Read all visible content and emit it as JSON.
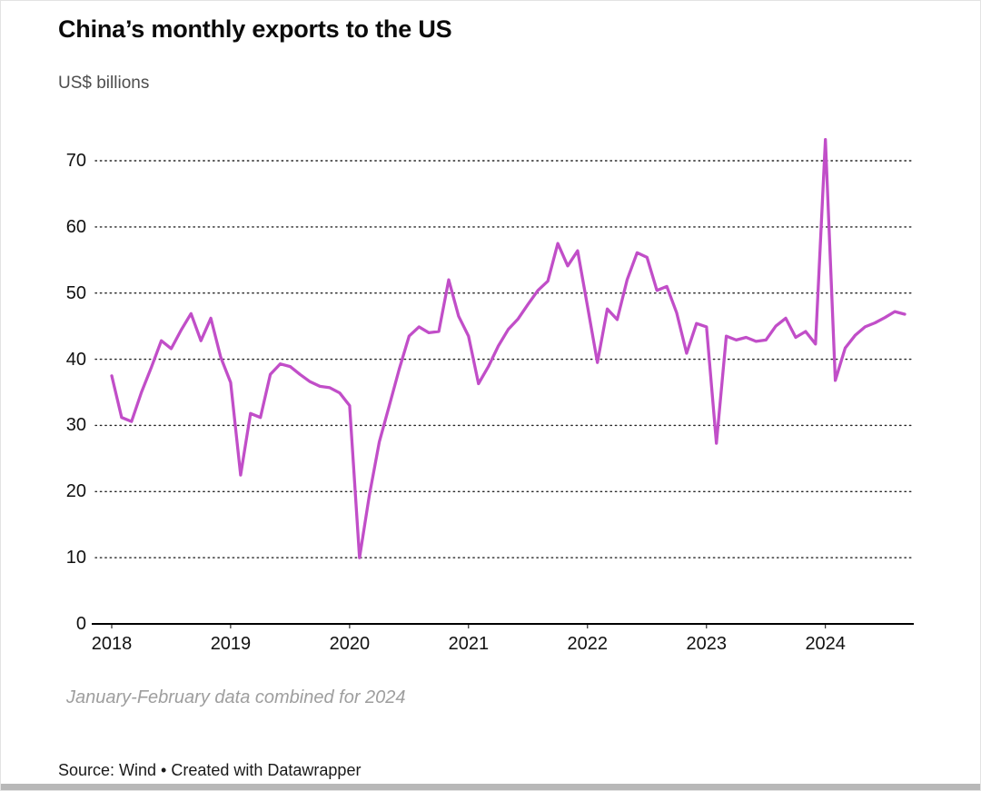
{
  "header": {
    "title": "China’s monthly exports to the US",
    "subtitle": "US$ billions"
  },
  "footnote": "January-February data combined for 2024",
  "source": "Source: Wind • Created with Datawrapper",
  "chart_data": {
    "type": "line",
    "title": "China’s monthly exports to the US",
    "xlabel": "",
    "ylabel": "US$ billions",
    "ylim": [
      0,
      75
    ],
    "yticks": [
      0,
      10,
      20,
      30,
      40,
      50,
      60,
      70
    ],
    "grid": "dotted horizontal",
    "legend_position": "none",
    "line_color": "#c14ec8",
    "note": "January-February data combined for 2024",
    "xticks": [
      {
        "label": "2018",
        "index": 0
      },
      {
        "label": "2019",
        "index": 12
      },
      {
        "label": "2020",
        "index": 24
      },
      {
        "label": "2021",
        "index": 36
      },
      {
        "label": "2022",
        "index": 48
      },
      {
        "label": "2023",
        "index": 60
      },
      {
        "label": "2024",
        "index": 72
      }
    ],
    "series_name": "China's monthly exports to the US (US$ billions)",
    "x": [
      "Jan 2018",
      "Feb 2018",
      "Mar 2018",
      "Apr 2018",
      "May 2018",
      "Jun 2018",
      "Jul 2018",
      "Aug 2018",
      "Sep 2018",
      "Oct 2018",
      "Nov 2018",
      "Dec 2018",
      "Jan 2019",
      "Feb 2019",
      "Mar 2019",
      "Apr 2019",
      "May 2019",
      "Jun 2019",
      "Jul 2019",
      "Aug 2019",
      "Sep 2019",
      "Oct 2019",
      "Nov 2019",
      "Dec 2019",
      "Jan 2020",
      "Feb 2020",
      "Mar 2020",
      "Apr 2020",
      "May 2020",
      "Jun 2020",
      "Jul 2020",
      "Aug 2020",
      "Sep 2020",
      "Oct 2020",
      "Nov 2020",
      "Dec 2020",
      "Jan 2021",
      "Feb 2021",
      "Mar 2021",
      "Apr 2021",
      "May 2021",
      "Jun 2021",
      "Jul 2021",
      "Aug 2021",
      "Sep 2021",
      "Oct 2021",
      "Nov 2021",
      "Dec 2021",
      "Jan 2022",
      "Feb 2022",
      "Mar 2022",
      "Apr 2022",
      "May 2022",
      "Jun 2022",
      "Jul 2022",
      "Aug 2022",
      "Sep 2022",
      "Oct 2022",
      "Nov 2022",
      "Dec 2022",
      "Jan 2023",
      "Feb 2023",
      "Mar 2023",
      "Apr 2023",
      "May 2023",
      "Jun 2023",
      "Jul 2023",
      "Aug 2023",
      "Sep 2023",
      "Oct 2023",
      "Nov 2023",
      "Dec 2023",
      "Jan-Feb 2024 (combined)",
      "Mar 2024",
      "Apr 2024",
      "May 2024",
      "Jun 2024",
      "Jul 2024",
      "Aug 2024",
      "Sep 2024",
      "Oct 2024"
    ],
    "values": [
      37.5,
      31.2,
      30.6,
      35.0,
      38.8,
      42.8,
      41.6,
      44.4,
      46.9,
      42.8,
      46.2,
      40.3,
      36.5,
      22.5,
      31.8,
      31.2,
      37.7,
      39.3,
      38.9,
      37.7,
      36.6,
      35.9,
      35.7,
      34.9,
      33.0,
      10.0,
      19.5,
      27.5,
      33.0,
      38.5,
      43.5,
      44.9,
      44.0,
      44.2,
      52.0,
      46.5,
      43.5,
      36.3,
      38.9,
      42.0,
      44.5,
      46.1,
      48.3,
      50.4,
      51.8,
      57.5,
      54.1,
      56.4,
      48.0,
      39.5,
      47.6,
      46.0,
      52.0,
      56.1,
      55.4,
      50.4,
      51.0,
      47.0,
      40.9,
      45.4,
      44.9,
      27.3,
      43.5,
      42.9,
      43.3,
      42.7,
      42.9,
      45.0,
      46.2,
      43.3,
      44.2,
      42.3,
      73.2,
      36.8,
      41.7,
      43.6,
      44.9,
      45.5,
      46.3,
      47.2,
      46.8
    ]
  }
}
